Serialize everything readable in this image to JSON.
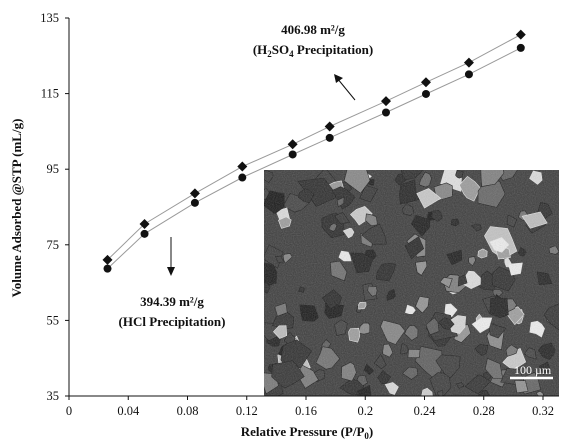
{
  "chart_data": {
    "type": "scatter",
    "title": "",
    "xlabel": "Relative Pressure (P/P0)",
    "xlabel_parts": {
      "main": "Relative Pressure (P/P",
      "sub": "0",
      "close": ")"
    },
    "ylabel": "Volume Adsorbed @STP (mL/g)",
    "xlim": [
      0,
      0.32
    ],
    "ylim": [
      35,
      135
    ],
    "x_ticks": [
      "0",
      "0.04",
      "0.08",
      "0.12",
      "0.16",
      "0.2",
      "0.24",
      "0.28",
      "0.32"
    ],
    "y_ticks": [
      "35",
      "55",
      "75",
      "95",
      "115",
      "135"
    ],
    "grid": false,
    "series": [
      {
        "marker": "diamond",
        "points": [
          {
            "x": 0.026,
            "y": 71.0
          },
          {
            "x": 0.051,
            "y": 80.5
          },
          {
            "x": 0.085,
            "y": 88.6
          },
          {
            "x": 0.117,
            "y": 95.7
          },
          {
            "x": 0.151,
            "y": 101.6
          },
          {
            "x": 0.176,
            "y": 106.3
          },
          {
            "x": 0.214,
            "y": 113.0
          },
          {
            "x": 0.241,
            "y": 118.0
          },
          {
            "x": 0.27,
            "y": 123.2
          },
          {
            "x": 0.305,
            "y": 130.6
          }
        ]
      },
      {
        "marker": "circle",
        "points": [
          {
            "x": 0.026,
            "y": 68.7
          },
          {
            "x": 0.051,
            "y": 77.9
          },
          {
            "x": 0.085,
            "y": 86.1
          },
          {
            "x": 0.117,
            "y": 92.8
          },
          {
            "x": 0.151,
            "y": 98.9
          },
          {
            "x": 0.176,
            "y": 103.3
          },
          {
            "x": 0.214,
            "y": 110.0
          },
          {
            "x": 0.241,
            "y": 114.9
          },
          {
            "x": 0.27,
            "y": 120.1
          },
          {
            "x": 0.305,
            "y": 127.1
          }
        ]
      }
    ],
    "annotations": {
      "upper": {
        "line1": "406.98 m²/g",
        "line2_parts": {
          "a": "(H",
          "sub1": "2",
          "b": "SO",
          "sub2": "4",
          "c": " Precipitation)"
        }
      },
      "lower": {
        "line1": "394.39 m²/g",
        "line2": "(HCl Precipitation)"
      }
    },
    "inset": {
      "scale_bar_label": "100 µm"
    }
  }
}
